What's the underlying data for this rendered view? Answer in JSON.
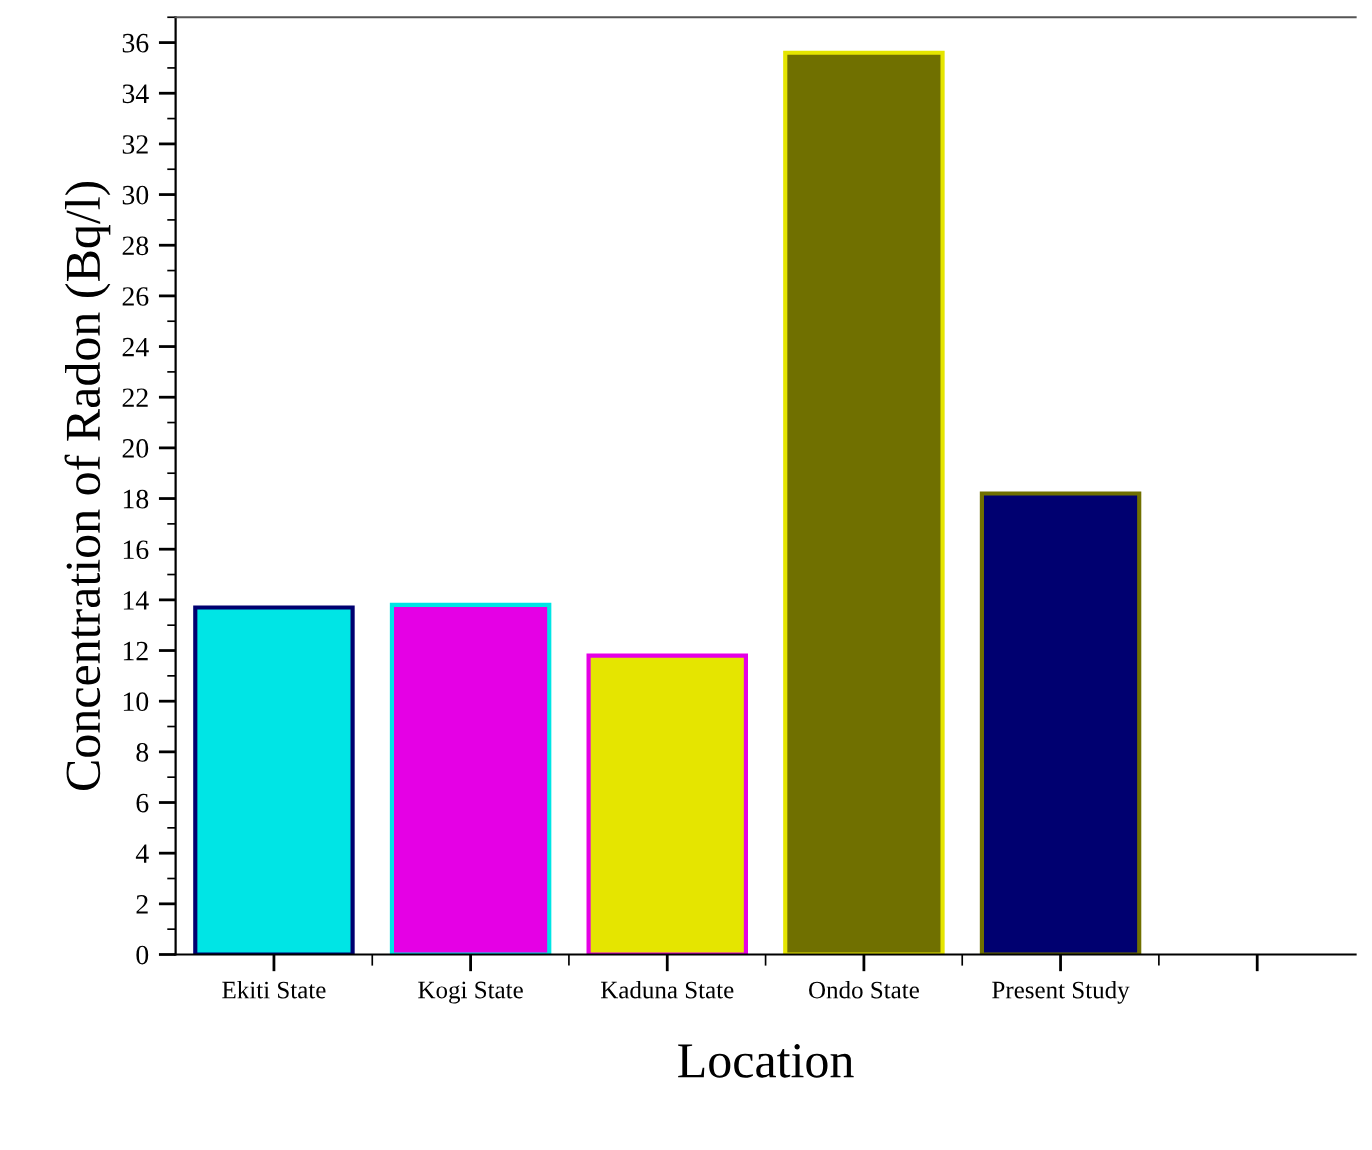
{
  "chart_data": {
    "type": "bar",
    "xlabel": "Location",
    "ylabel": "Concentration of Radon (Bq/l)",
    "categories": [
      "Ekiti State",
      "Kogi State",
      "Kaduna State",
      "Ondo State",
      "Present Study",
      null
    ],
    "values": [
      13.7,
      13.8,
      11.8,
      35.6,
      18.2,
      null
    ],
    "colors": [
      "#00e5e5",
      "#e500e5",
      "#e5e500",
      "#707000",
      "#000070",
      null
    ],
    "ylim": [
      0,
      37
    ],
    "yticks": [
      0,
      2,
      4,
      6,
      8,
      10,
      12,
      14,
      16,
      18,
      20,
      22,
      24,
      26,
      28,
      30,
      32,
      34,
      36
    ],
    "grid": false,
    "legend": false
  }
}
